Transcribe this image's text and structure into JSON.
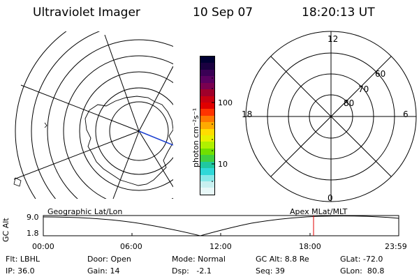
{
  "header": {
    "title": "Ultraviolet Imager",
    "date": "10 Sep 07",
    "time": "18:20:13 UT"
  },
  "colorbar": {
    "unit_label": "photon cm⁻²s⁻¹",
    "tick_100": "100",
    "tick_10": "10",
    "colors": [
      "#000033",
      "#1a0040",
      "#3a0055",
      "#5a0060",
      "#7a0050",
      "#a0002a",
      "#c80010",
      "#e00000",
      "#ff3300",
      "#ff7700",
      "#ffaa00",
      "#ffdd00",
      "#e8f000",
      "#b0f000",
      "#70e000",
      "#40d040",
      "#20c8a0",
      "#30d8d8",
      "#88e8e8",
      "#c8f0f0",
      "#e8f8f8"
    ]
  },
  "right_map": {
    "mlt_12": "12",
    "mlt_18": "18",
    "mlt_6": "6",
    "mlt_0": "0",
    "lat_60": "60",
    "lat_70": "70",
    "lat_80": "80"
  },
  "altitude_panel": {
    "y_label": "GC Alt",
    "y_max": "9.0",
    "y_min": "1.8",
    "left_title": "Geographic Lat/Lon",
    "right_title": "Apex  MLat/MLT",
    "x_ticks": [
      "00:00",
      "06:00",
      "12:00",
      "18:00",
      "23:59"
    ]
  },
  "info": {
    "row1": {
      "filter": "Flt: LBHL",
      "door": "Door: Open",
      "mode": "Mode: Normal",
      "gc_alt": "GC Alt: 8.8 Re",
      "glat": "GLat: -72.0"
    },
    "row2": {
      "ip": "IP: 36.0",
      "gain": "Gain: 14",
      "dsp": "Dsp:   -2.1",
      "seq": "Seq: 39",
      "glon": "GLon:  80.8"
    }
  }
}
